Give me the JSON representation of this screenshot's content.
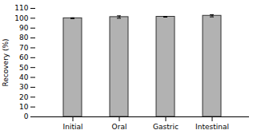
{
  "chart_data": {
    "type": "bar",
    "categories": [
      "Initial",
      "Oral",
      "Gastric",
      "Intestinal"
    ],
    "values": [
      100.0,
      101.2,
      101.5,
      102.5
    ],
    "errors": [
      0.4,
      1.2,
      0.4,
      1.1
    ],
    "color": "#b2b2b2",
    "ylabel": "Recovery (%)",
    "ylim": [
      0,
      110
    ],
    "yticks": [
      0,
      10,
      20,
      30,
      40,
      50,
      60,
      70,
      80,
      90,
      100,
      110
    ],
    "grid": false
  }
}
